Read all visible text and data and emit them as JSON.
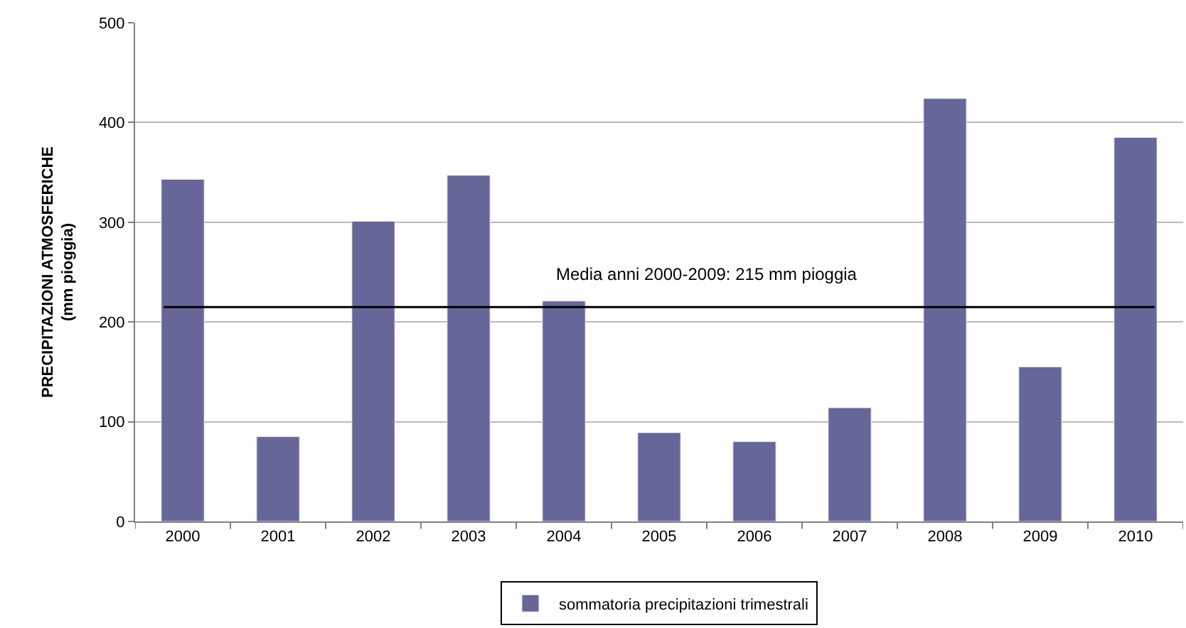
{
  "chart_data": {
    "type": "bar",
    "ylabel": "PRECIPITAZIONI ATMOSFERICHE\n(mm pioggia)",
    "categories": [
      "2000",
      "2001",
      "2002",
      "2003",
      "2004",
      "2005",
      "2006",
      "2007",
      "2008",
      "2009",
      "2010"
    ],
    "series": [
      {
        "name": "sommatoria precipitazioni trimestrali",
        "color": "#666699",
        "values": [
          343,
          85,
          301,
          347,
          221,
          89,
          80,
          114,
          424,
          155,
          385
        ]
      }
    ],
    "ylim": [
      0,
      500
    ],
    "yticks": [
      0,
      100,
      200,
      300,
      400,
      500
    ],
    "grid": "y",
    "legend": "bottom",
    "ref_lines": [
      {
        "axis": "y",
        "value": 215,
        "label": "Media anni 2000-2009: 215 mm pioggia",
        "color": "#000000"
      }
    ]
  }
}
